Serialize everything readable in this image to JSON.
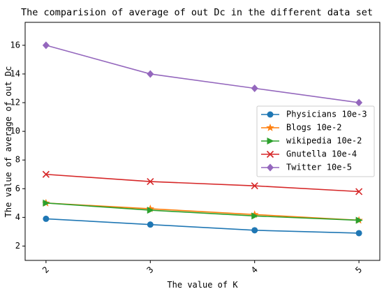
{
  "chart_data": {
    "type": "line",
    "title": "The comparision of average of out Dc in the different data set",
    "xlabel": "The value of K",
    "ylabel": "The value of average of out Dc",
    "x": [
      2,
      3,
      4,
      5
    ],
    "x_tick_labels": [
      "2",
      "3",
      "4",
      "5"
    ],
    "xlim": [
      1.8,
      5.2
    ],
    "y_ticks": [
      2,
      4,
      6,
      8,
      10,
      12,
      14,
      16
    ],
    "y_tick_labels": [
      "2",
      "4",
      "6",
      "8",
      "10",
      "12",
      "14",
      "16"
    ],
    "ylim": [
      1.0,
      17.6
    ],
    "grid": false,
    "legend_position": "center-right",
    "series": [
      {
        "name": "Physicians 10e-3",
        "color": "#1f77b4",
        "marker": "circle",
        "values": [
          3.9,
          3.5,
          3.1,
          2.9
        ]
      },
      {
        "name": "Blogs 10e-2",
        "color": "#ff7f0e",
        "marker": "star",
        "values": [
          5.0,
          4.6,
          4.2,
          3.8
        ]
      },
      {
        "name": "wikipedia 10e-2",
        "color": "#2ca02c",
        "marker": "triangle-right",
        "values": [
          5.0,
          4.5,
          4.1,
          3.8
        ]
      },
      {
        "name": "Gnutella 10e-4",
        "color": "#d62728",
        "marker": "x",
        "values": [
          7.0,
          6.5,
          6.2,
          5.8
        ]
      },
      {
        "name": "Twitter 10e-5",
        "color": "#9467bd",
        "marker": "diamond",
        "values": [
          16.0,
          14.0,
          13.0,
          12.0
        ]
      }
    ]
  }
}
